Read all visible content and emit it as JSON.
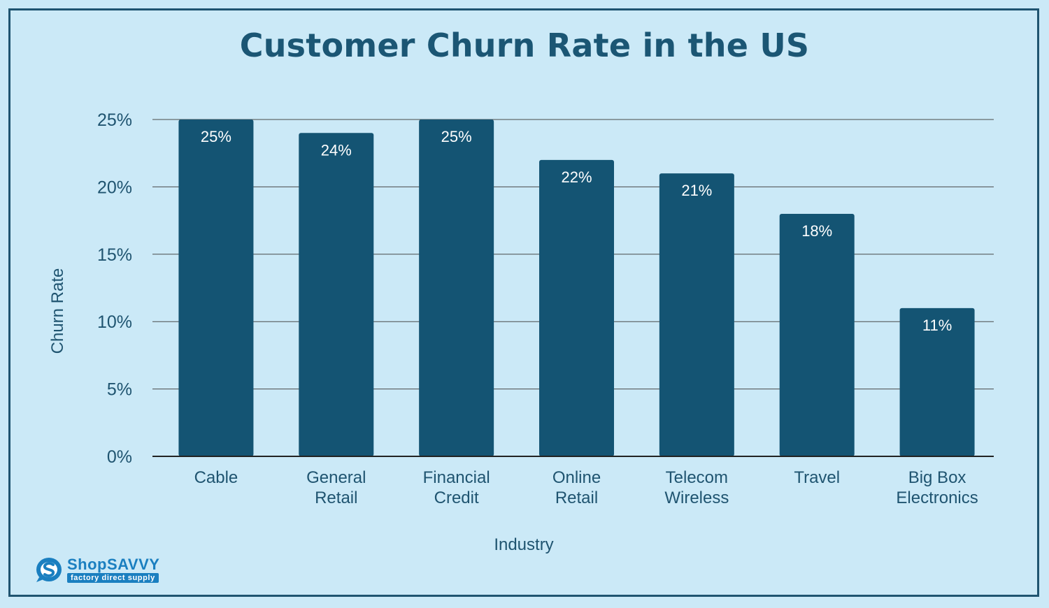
{
  "chart_data": {
    "type": "bar",
    "title": "Customer Churn Rate in the US",
    "xlabel": "Industry",
    "ylabel": "Churn Rate",
    "categories": [
      [
        "Cable"
      ],
      [
        "General",
        "Retail"
      ],
      [
        "Financial",
        "Credit"
      ],
      [
        "Online",
        "Retail"
      ],
      [
        "Telecom",
        "Wireless"
      ],
      [
        "Travel"
      ],
      [
        "Big Box",
        "Electronics"
      ]
    ],
    "values": [
      25,
      24,
      25,
      22,
      21,
      18,
      11
    ],
    "value_labels": [
      "25%",
      "24%",
      "25%",
      "22%",
      "21%",
      "18%",
      "11%"
    ],
    "ylim": [
      0,
      25
    ],
    "yticks": [
      0,
      5,
      10,
      15,
      20,
      25
    ],
    "ytick_labels": [
      "0%",
      "5%",
      "10%",
      "15%",
      "20%",
      "25%"
    ],
    "grid": true,
    "colors": {
      "bar": "#145473",
      "axis_text": "#1f5470",
      "grid": "#4a4a4a",
      "background": "#cbe9f7"
    }
  },
  "logo": {
    "brand": "ShopSAVVY",
    "tagline": "factory direct supply"
  }
}
